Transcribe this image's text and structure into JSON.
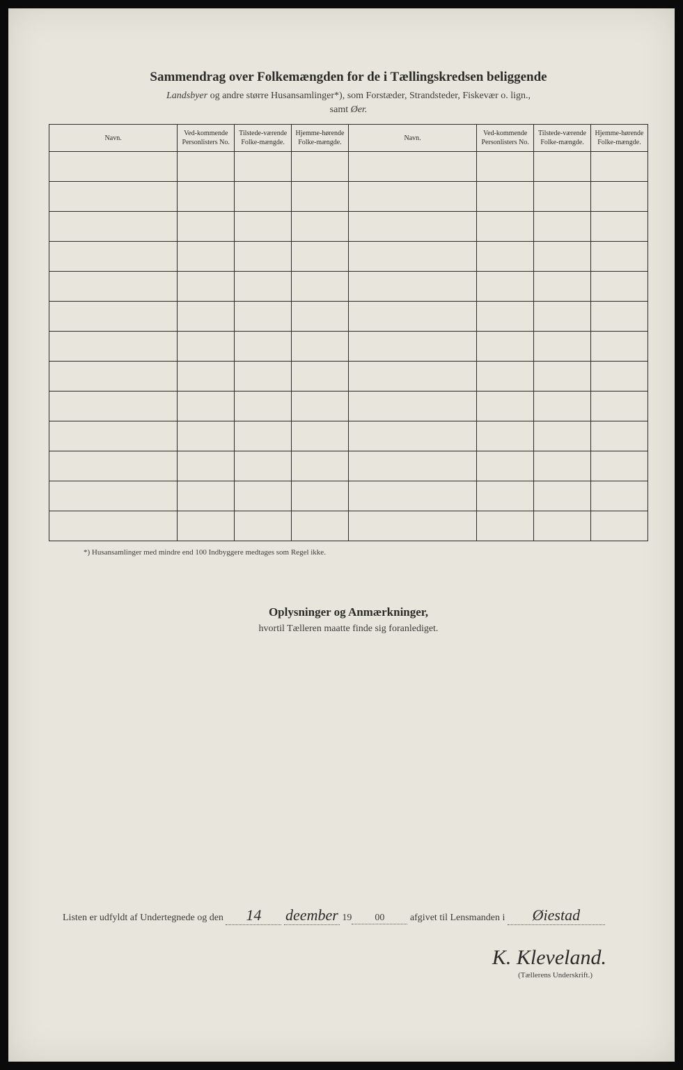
{
  "header": {
    "title": "Sammendrag over Folkemængden for de i Tællingskredsen beliggende",
    "subtitle_italic": "Landsbyer",
    "subtitle_rest": " og andre større Husansamlinger*), som Forstæder, Strandsteder, Fiskevær o. lign.,",
    "subtitle2_prefix": "samt ",
    "subtitle2_italic": "Øer."
  },
  "table": {
    "columns": [
      "Navn.",
      "Ved-kommende Personlisters No.",
      "Tilstede-værende Folke-mængde.",
      "Hjemme-hørende Folke-mængde.",
      "Navn.",
      "Ved-kommende Personlisters No.",
      "Tilstede-værende Folke-mængde.",
      "Hjemme-hørende Folke-mængde."
    ],
    "row_count": 13
  },
  "footnote": "*) Husansamlinger med mindre end 100 Indbyggere medtages som Regel ikke.",
  "section2": {
    "title": "Oplysninger og Anmærkninger,",
    "subtitle": "hvortil Tælleren maatte finde sig foranlediget."
  },
  "signature": {
    "line_prefix": "Listen er udfyldt af Undertegnede og den ",
    "date_day": "14",
    "date_month": "deember",
    "year_prefix": "19",
    "year_suffix": "00",
    "line_suffix": " afgivet til Lensmanden i ",
    "place": "Øiestad",
    "name": "K. Kleveland.",
    "caption": "(Tællerens Underskrift.)"
  },
  "colors": {
    "page_bg": "#e8e6dc",
    "border": "#2a2a2a",
    "text": "#2a2a2a",
    "frame": "#0a0a0a"
  }
}
